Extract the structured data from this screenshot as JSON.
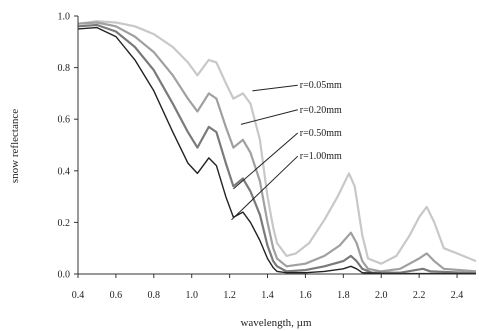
{
  "chart_data": {
    "type": "line",
    "xlabel": "wavelength, µm",
    "ylabel": "snow reflectance",
    "xlim": [
      0.4,
      2.5
    ],
    "ylim": [
      0.0,
      1.0
    ],
    "x_ticks": [
      "0.4",
      "0.6",
      "0.8",
      "1.0",
      "1.2",
      "1.4",
      "1.6",
      "1.8",
      "2.0",
      "2.2",
      "2.4"
    ],
    "y_ticks": [
      "0.0",
      "0.2",
      "0.4",
      "0.6",
      "0.8",
      "1.0"
    ],
    "grid": false,
    "series": [
      {
        "name": "r=0.05mm",
        "color": "#c8c8c8",
        "points": [
          [
            0.4,
            0.97
          ],
          [
            0.5,
            0.98
          ],
          [
            0.6,
            0.975
          ],
          [
            0.7,
            0.96
          ],
          [
            0.8,
            0.93
          ],
          [
            0.9,
            0.88
          ],
          [
            0.98,
            0.82
          ],
          [
            1.03,
            0.77
          ],
          [
            1.09,
            0.83
          ],
          [
            1.13,
            0.82
          ],
          [
            1.18,
            0.74
          ],
          [
            1.22,
            0.68
          ],
          [
            1.27,
            0.7
          ],
          [
            1.31,
            0.66
          ],
          [
            1.36,
            0.52
          ],
          [
            1.4,
            0.3
          ],
          [
            1.43,
            0.18
          ],
          [
            1.45,
            0.12
          ],
          [
            1.5,
            0.07
          ],
          [
            1.55,
            0.08
          ],
          [
            1.62,
            0.12
          ],
          [
            1.7,
            0.21
          ],
          [
            1.77,
            0.3
          ],
          [
            1.83,
            0.39
          ],
          [
            1.86,
            0.34
          ],
          [
            1.9,
            0.15
          ],
          [
            1.93,
            0.06
          ],
          [
            2.0,
            0.04
          ],
          [
            2.08,
            0.07
          ],
          [
            2.15,
            0.15
          ],
          [
            2.2,
            0.22
          ],
          [
            2.24,
            0.26
          ],
          [
            2.28,
            0.2
          ],
          [
            2.33,
            0.1
          ],
          [
            2.4,
            0.08
          ],
          [
            2.5,
            0.05
          ]
        ]
      },
      {
        "name": "r=0.20mm",
        "color": "#a0a0a0",
        "points": [
          [
            0.4,
            0.97
          ],
          [
            0.5,
            0.975
          ],
          [
            0.6,
            0.96
          ],
          [
            0.7,
            0.92
          ],
          [
            0.8,
            0.86
          ],
          [
            0.9,
            0.77
          ],
          [
            0.98,
            0.68
          ],
          [
            1.03,
            0.63
          ],
          [
            1.09,
            0.7
          ],
          [
            1.13,
            0.68
          ],
          [
            1.18,
            0.57
          ],
          [
            1.22,
            0.49
          ],
          [
            1.27,
            0.52
          ],
          [
            1.31,
            0.47
          ],
          [
            1.36,
            0.36
          ],
          [
            1.4,
            0.2
          ],
          [
            1.43,
            0.1
          ],
          [
            1.45,
            0.06
          ],
          [
            1.5,
            0.03
          ],
          [
            1.6,
            0.04
          ],
          [
            1.7,
            0.07
          ],
          [
            1.78,
            0.11
          ],
          [
            1.84,
            0.16
          ],
          [
            1.87,
            0.12
          ],
          [
            1.9,
            0.05
          ],
          [
            1.93,
            0.02
          ],
          [
            2.0,
            0.01
          ],
          [
            2.1,
            0.02
          ],
          [
            2.2,
            0.06
          ],
          [
            2.24,
            0.08
          ],
          [
            2.28,
            0.05
          ],
          [
            2.33,
            0.02
          ],
          [
            2.5,
            0.01
          ]
        ]
      },
      {
        "name": "r=0.50mm",
        "color": "#7a7a7a",
        "points": [
          [
            0.4,
            0.96
          ],
          [
            0.5,
            0.965
          ],
          [
            0.6,
            0.94
          ],
          [
            0.7,
            0.88
          ],
          [
            0.8,
            0.79
          ],
          [
            0.9,
            0.66
          ],
          [
            0.98,
            0.55
          ],
          [
            1.03,
            0.49
          ],
          [
            1.09,
            0.57
          ],
          [
            1.13,
            0.55
          ],
          [
            1.18,
            0.43
          ],
          [
            1.22,
            0.34
          ],
          [
            1.27,
            0.37
          ],
          [
            1.31,
            0.32
          ],
          [
            1.36,
            0.23
          ],
          [
            1.4,
            0.11
          ],
          [
            1.43,
            0.05
          ],
          [
            1.45,
            0.03
          ],
          [
            1.5,
            0.01
          ],
          [
            1.6,
            0.015
          ],
          [
            1.7,
            0.03
          ],
          [
            1.8,
            0.05
          ],
          [
            1.84,
            0.07
          ],
          [
            1.87,
            0.05
          ],
          [
            1.9,
            0.02
          ],
          [
            1.95,
            0.005
          ],
          [
            2.1,
            0.005
          ],
          [
            2.22,
            0.02
          ],
          [
            2.26,
            0.01
          ],
          [
            2.5,
            0.003
          ]
        ]
      },
      {
        "name": "r=1.00mm",
        "color": "#222222",
        "points": [
          [
            0.4,
            0.95
          ],
          [
            0.5,
            0.955
          ],
          [
            0.6,
            0.92
          ],
          [
            0.7,
            0.83
          ],
          [
            0.8,
            0.71
          ],
          [
            0.9,
            0.55
          ],
          [
            0.98,
            0.43
          ],
          [
            1.03,
            0.39
          ],
          [
            1.09,
            0.45
          ],
          [
            1.13,
            0.42
          ],
          [
            1.18,
            0.3
          ],
          [
            1.22,
            0.22
          ],
          [
            1.27,
            0.24
          ],
          [
            1.31,
            0.2
          ],
          [
            1.36,
            0.13
          ],
          [
            1.4,
            0.06
          ],
          [
            1.43,
            0.025
          ],
          [
            1.45,
            0.01
          ],
          [
            1.5,
            0.005
          ],
          [
            1.6,
            0.005
          ],
          [
            1.7,
            0.01
          ],
          [
            1.8,
            0.02
          ],
          [
            1.84,
            0.03
          ],
          [
            1.87,
            0.02
          ],
          [
            1.9,
            0.005
          ],
          [
            2.0,
            0.002
          ],
          [
            2.5,
            0.001
          ]
        ]
      }
    ],
    "annotations": [
      {
        "label": "r=0.05mm",
        "text_at": [
          1.57,
          0.72
        ],
        "arrow_to": [
          1.32,
          0.71
        ]
      },
      {
        "label": "r=0.20mm",
        "text_at": [
          1.57,
          0.625
        ],
        "arrow_to": [
          1.26,
          0.58
        ]
      },
      {
        "label": "r=0.50mm",
        "text_at": [
          1.57,
          0.535
        ],
        "arrow_to": [
          1.22,
          0.33
        ]
      },
      {
        "label": "r=1.00mm",
        "text_at": [
          1.57,
          0.445
        ],
        "arrow_to": [
          1.21,
          0.21
        ]
      }
    ]
  }
}
